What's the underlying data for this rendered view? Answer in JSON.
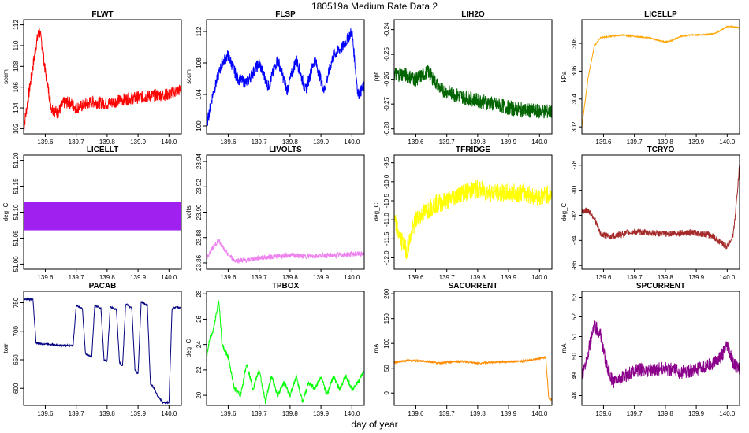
{
  "figure": {
    "title": "180519a   Medium Rate Data 2",
    "xlabel": "day of year"
  },
  "chart_data": [
    {
      "type": "line",
      "title": "FLWT",
      "ylabel": "sccm",
      "color": "#ff0000",
      "xlim": [
        139.53,
        140.04
      ],
      "xticks": [
        139.6,
        139.7,
        139.8,
        139.9,
        140.0
      ],
      "ylim": [
        101.5,
        112.5
      ],
      "yticks": [
        102,
        104,
        106,
        108,
        110,
        112
      ],
      "series": [
        {
          "name": "FLWT",
          "x": [
            139.53,
            139.55,
            139.57,
            139.58,
            139.59,
            139.6,
            139.62,
            139.64,
            139.66,
            139.68,
            139.7,
            139.72,
            139.75,
            139.8,
            139.85,
            139.9,
            139.95,
            140.0,
            140.04
          ],
          "y": [
            102,
            106,
            110,
            111.5,
            110,
            107.5,
            104,
            103.5,
            104.5,
            104.5,
            104,
            104.2,
            104.6,
            104.4,
            104.8,
            105,
            105.2,
            105.3,
            105.8
          ],
          "noise": 1.2
        }
      ]
    },
    {
      "type": "line",
      "title": "FLSP",
      "ylabel": "sccm",
      "color": "#0000ff",
      "xlim": [
        139.53,
        140.04
      ],
      "xticks": [
        139.6,
        139.7,
        139.8,
        139.9,
        140.0
      ],
      "ylim": [
        99,
        113.5
      ],
      "yticks": [
        100,
        104,
        108,
        112
      ],
      "series": [
        {
          "name": "FLSP",
          "x": [
            139.53,
            139.55,
            139.58,
            139.6,
            139.63,
            139.66,
            139.7,
            139.73,
            139.76,
            139.79,
            139.82,
            139.85,
            139.88,
            139.91,
            139.94,
            139.97,
            140.0,
            140.02,
            140.04
          ],
          "y": [
            100,
            104,
            108,
            109,
            106,
            105.5,
            108,
            105,
            108.5,
            104.5,
            108.5,
            104.5,
            108.5,
            104.5,
            109,
            110,
            112,
            104,
            105
          ],
          "noise": 1.5
        }
      ]
    },
    {
      "type": "line",
      "title": "LIH2O",
      "ylabel": "ppt",
      "color": "#006400",
      "xlim": [
        139.53,
        140.04
      ],
      "xticks": [
        139.6,
        139.7,
        139.8,
        139.9,
        140.0
      ],
      "ylim": [
        -0.282,
        -0.236
      ],
      "yticks": [
        -0.28,
        -0.27,
        -0.26,
        -0.25,
        -0.24
      ],
      "yticklabels": [
        "-0.28",
        "-0.27",
        "-0.26",
        "-0.25",
        "-0.24"
      ],
      "series": [
        {
          "name": "LIH2O",
          "x": [
            139.53,
            139.56,
            139.6,
            139.64,
            139.68,
            139.72,
            139.78,
            139.85,
            139.92,
            140.0,
            140.04
          ],
          "y": [
            -0.258,
            -0.258,
            -0.26,
            -0.257,
            -0.264,
            -0.266,
            -0.268,
            -0.27,
            -0.272,
            -0.273,
            -0.273
          ],
          "noise": 0.006
        }
      ]
    },
    {
      "type": "line",
      "title": "LICELLP",
      "ylabel": "kPa",
      "color": "#ffa500",
      "xlim": [
        139.53,
        140.04
      ],
      "xticks": [
        139.6,
        139.7,
        139.8,
        139.9,
        140.0
      ],
      "ylim": [
        301.5,
        309.7
      ],
      "yticks": [
        302,
        304,
        306,
        308
      ],
      "series": [
        {
          "name": "LICELLP",
          "x": [
            139.53,
            139.55,
            139.57,
            139.59,
            139.62,
            139.66,
            139.7,
            139.75,
            139.78,
            139.8,
            139.82,
            139.85,
            139.88,
            139.92,
            139.96,
            140.0,
            140.02,
            140.04
          ],
          "y": [
            302,
            305.5,
            307.8,
            308.4,
            308.5,
            308.6,
            308.5,
            308.4,
            308.2,
            308.1,
            308.2,
            308.5,
            308.6,
            308.6,
            308.7,
            309.2,
            309.2,
            309.1
          ],
          "noise": 0.08
        }
      ]
    },
    {
      "type": "area",
      "title": "LICELLT",
      "ylabel": "deg_C",
      "color": "#a020f0",
      "xlim": [
        139.53,
        140.04
      ],
      "xticks": [
        139.6,
        139.7,
        139.8,
        139.9,
        140.0
      ],
      "ylim": [
        50.99,
        51.21
      ],
      "yticks": [
        51.0,
        51.05,
        51.1,
        51.15,
        51.2
      ],
      "yticklabels": [
        "51.00",
        "51.05",
        "51.10",
        "51.15",
        "51.20"
      ],
      "series": [
        {
          "name": "LICELLT",
          "x": [
            139.53,
            140.04
          ],
          "low": [
            51.065,
            51.065
          ],
          "high": [
            51.12,
            51.12
          ]
        }
      ]
    },
    {
      "type": "line",
      "title": "LIVOLTS",
      "ylabel": "volts",
      "color": "#ee82ee",
      "xlim": [
        139.53,
        140.04
      ],
      "xticks": [
        139.6,
        139.7,
        139.8,
        139.9,
        140.0
      ],
      "ylim": [
        23.855,
        23.945
      ],
      "yticks": [
        23.86,
        23.88,
        23.9,
        23.92,
        23.94
      ],
      "yticklabels": [
        "23.86",
        "23.88",
        "23.90",
        "23.92",
        "23.94"
      ],
      "series": [
        {
          "name": "LIVOLTS",
          "x": [
            139.53,
            139.55,
            139.57,
            139.59,
            139.62,
            139.66,
            139.7,
            139.75,
            139.8,
            139.85,
            139.9,
            139.95,
            140.0,
            140.04
          ],
          "y": [
            23.864,
            23.872,
            23.878,
            23.869,
            23.862,
            23.862,
            23.864,
            23.865,
            23.866,
            23.865,
            23.866,
            23.866,
            23.867,
            23.867
          ],
          "noise": 0.004
        }
      ]
    },
    {
      "type": "line",
      "title": "TFRIDGE",
      "ylabel": "deg_C",
      "color": "#ffff00",
      "xlim": [
        139.53,
        140.04
      ],
      "xticks": [
        139.6,
        139.7,
        139.8,
        139.9,
        140.0
      ],
      "ylim": [
        -12.3,
        -9.3
      ],
      "yticks": [
        -12,
        -11.5,
        -11,
        -10.5,
        -10,
        -9.5
      ],
      "yticklabels": [
        "-12.0",
        "-11.5",
        "-11.0",
        "-10.5",
        "-10.0",
        "-9.5"
      ],
      "series": [
        {
          "name": "TFRIDGE",
          "x": [
            139.53,
            139.55,
            139.57,
            139.6,
            139.63,
            139.66,
            139.7,
            139.75,
            139.8,
            139.85,
            139.9,
            139.95,
            140.0,
            140.04
          ],
          "y": [
            -11,
            -11.5,
            -11.8,
            -11,
            -10.8,
            -10.6,
            -10.5,
            -10.3,
            -10.2,
            -10.3,
            -10.3,
            -10.3,
            -10.4,
            -10.3
          ],
          "noise": 0.5
        }
      ]
    },
    {
      "type": "line",
      "title": "TCRYO",
      "ylabel": "deg_C",
      "color": "#a52a2a",
      "xlim": [
        139.53,
        140.04
      ],
      "xticks": [
        139.6,
        139.7,
        139.8,
        139.9,
        140.0
      ],
      "ylim": [
        -86.3,
        -77.2
      ],
      "yticks": [
        -86,
        -84,
        -82,
        -80,
        -78
      ],
      "series": [
        {
          "name": "TCRYO",
          "x": [
            139.53,
            139.55,
            139.57,
            139.59,
            139.62,
            139.66,
            139.7,
            139.75,
            139.8,
            139.85,
            139.9,
            139.95,
            139.98,
            140.0,
            140.02,
            140.03,
            140.04
          ],
          "y": [
            -81.7,
            -81.6,
            -82.2,
            -83.5,
            -83.7,
            -83.5,
            -83.3,
            -83.4,
            -83.5,
            -83.4,
            -83.4,
            -83.6,
            -84.2,
            -84.5,
            -83.5,
            -81,
            -78
          ],
          "noise": 0.5
        }
      ]
    },
    {
      "type": "line",
      "title": "PACAB",
      "ylabel": "torr",
      "color": "#000080",
      "xlim": [
        139.53,
        140.04
      ],
      "xticks": [
        139.6,
        139.7,
        139.8,
        139.9,
        140.0
      ],
      "ylim": [
        570,
        770
      ],
      "yticks": [
        600,
        650,
        700,
        750
      ],
      "series": [
        {
          "name": "PACAB",
          "x": [
            139.53,
            139.56,
            139.57,
            139.58,
            139.6,
            139.65,
            139.69,
            139.7,
            139.72,
            139.73,
            139.75,
            139.76,
            139.78,
            139.79,
            139.8,
            139.81,
            139.83,
            139.84,
            139.85,
            139.86,
            139.88,
            139.89,
            139.9,
            139.91,
            139.93,
            139.94,
            139.95,
            139.96,
            139.98,
            139.99,
            140.0,
            140.01,
            140.03,
            140.04
          ],
          "y": [
            756,
            756,
            680,
            678,
            678,
            675,
            675,
            745,
            740,
            660,
            655,
            745,
            740,
            650,
            648,
            742,
            738,
            645,
            640,
            748,
            740,
            632,
            625,
            752,
            745,
            608,
            602,
            590,
            575,
            575,
            575,
            740,
            742,
            740
          ],
          "noise": 3
        }
      ]
    },
    {
      "type": "line",
      "title": "TPBOX",
      "ylabel": "deg_C",
      "color": "#00ff00",
      "xlim": [
        139.53,
        140.04
      ],
      "xticks": [
        139.6,
        139.7,
        139.8,
        139.9,
        140.0
      ],
      "ylim": [
        19.2,
        28.2
      ],
      "yticks": [
        20,
        22,
        24,
        26,
        28
      ],
      "series": [
        {
          "name": "TPBOX",
          "x": [
            139.53,
            139.54,
            139.55,
            139.57,
            139.58,
            139.6,
            139.62,
            139.64,
            139.66,
            139.68,
            139.7,
            139.72,
            139.74,
            139.76,
            139.78,
            139.8,
            139.82,
            139.84,
            139.86,
            139.88,
            139.9,
            139.92,
            139.94,
            139.96,
            139.98,
            140.0,
            140.02,
            140.04
          ],
          "y": [
            23,
            24.5,
            25,
            27.5,
            24,
            23,
            20.5,
            20,
            22.5,
            20.5,
            22,
            19.5,
            21.5,
            20,
            21,
            20,
            21.5,
            19.5,
            21,
            20.5,
            21.5,
            20,
            21.5,
            20.5,
            21.5,
            20.5,
            21,
            22
          ],
          "noise": 0.4
        }
      ]
    },
    {
      "type": "line",
      "title": "SACURRENT",
      "ylabel": "mA",
      "color": "#ff8c00",
      "xlim": [
        139.53,
        140.04
      ],
      "xticks": [
        139.6,
        139.7,
        139.8,
        139.9,
        140.0
      ],
      "ylim": [
        -25,
        205
      ],
      "yticks": [
        0,
        50,
        100,
        150,
        200
      ],
      "series": [
        {
          "name": "SACURRENT",
          "x": [
            139.53,
            139.56,
            139.58,
            139.6,
            139.64,
            139.68,
            139.7,
            139.75,
            139.8,
            139.85,
            139.9,
            139.95,
            140.0,
            140.02,
            140.03,
            140.04
          ],
          "y": [
            62,
            64,
            66,
            65,
            63,
            60,
            62,
            64,
            60,
            62,
            63,
            64,
            70,
            72,
            -12,
            -15
          ],
          "noise": 4
        }
      ]
    },
    {
      "type": "line",
      "title": "SPCURRENT",
      "ylabel": "mA",
      "color": "#8b008b",
      "xlim": [
        139.53,
        140.04
      ],
      "xticks": [
        139.6,
        139.7,
        139.8,
        139.9,
        140.0
      ],
      "ylim": [
        47.5,
        53.3
      ],
      "yticks": [
        48,
        49,
        50,
        51,
        52,
        53
      ],
      "series": [
        {
          "name": "SPCURRENT",
          "x": [
            139.53,
            139.55,
            139.57,
            139.59,
            139.61,
            139.63,
            139.66,
            139.7,
            139.75,
            139.8,
            139.85,
            139.9,
            139.95,
            139.98,
            140.0,
            140.02,
            140.04
          ],
          "y": [
            49,
            50.2,
            51.5,
            51.2,
            49.5,
            48.7,
            48.9,
            49.3,
            49.3,
            49.4,
            49.2,
            49.3,
            49.6,
            50,
            50.5,
            49.6,
            49.4
          ],
          "noise": 0.7
        }
      ]
    }
  ]
}
